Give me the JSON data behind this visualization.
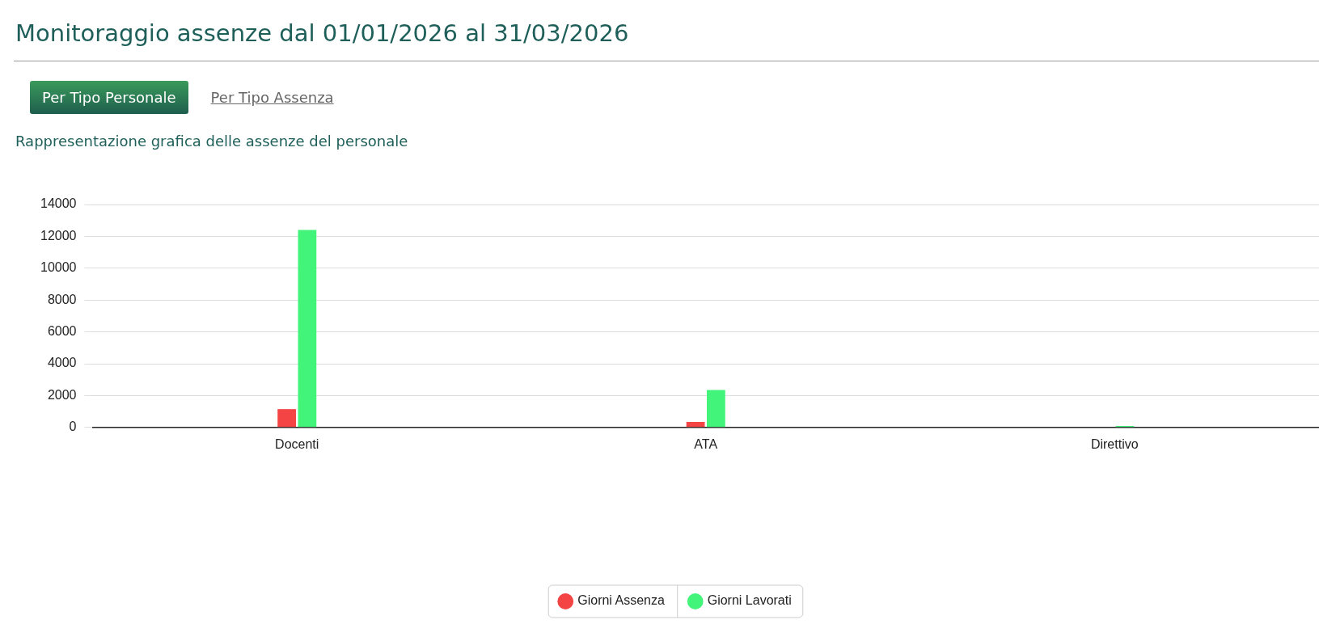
{
  "chart_data": {
    "type": "bar",
    "title": "Monitoraggio assenze dal 01/01/2026 al 31/03/2026",
    "subtitle": "Rappresentazione grafica delle assenze del personale",
    "annotations": [
      "Per Tipo Personale",
      "Per Tipo Assenza"
    ],
    "categories": [
      "Docenti",
      "ATA",
      "Direttivo"
    ],
    "series": [
      {
        "name": "Giorni Assenza",
        "color": "#f44444",
        "values": [
          1150,
          350,
          0
        ]
      },
      {
        "name": "Giorni Lavorati",
        "color": "#42f47a",
        "values": [
          12400,
          2350,
          90
        ]
      }
    ],
    "ylim": [
      0,
      14000
    ],
    "yticks": [
      0,
      2000,
      4000,
      6000,
      8000,
      10000,
      12000,
      14000
    ],
    "grid": "y",
    "legend": "bottom"
  }
}
